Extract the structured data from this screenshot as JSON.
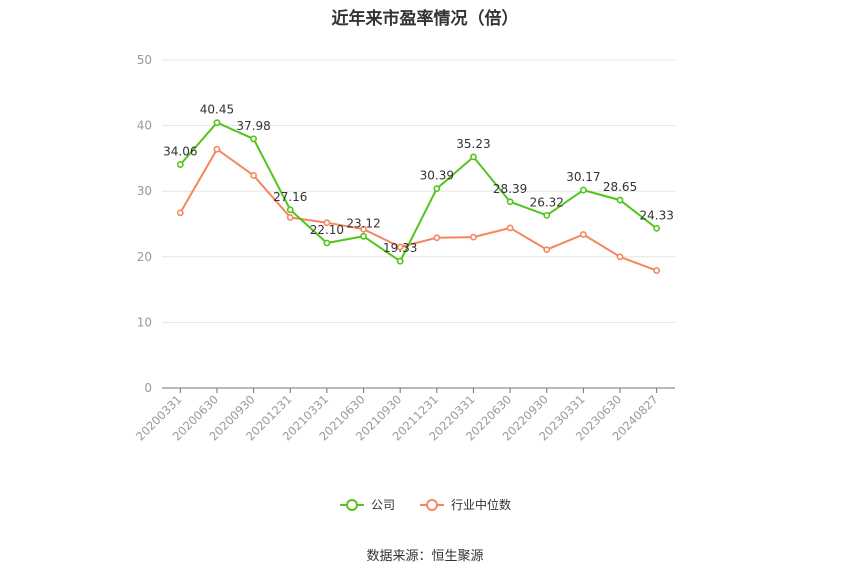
{
  "chart_data": {
    "type": "line",
    "title": "近年来市盈率情况（倍）",
    "categories": [
      "20200331",
      "20200630",
      "20200930",
      "20201231",
      "20210331",
      "20210630",
      "20210930",
      "20211231",
      "20220331",
      "20220630",
      "20220930",
      "20230331",
      "20230630",
      "20240827"
    ],
    "series": [
      {
        "name": "公司",
        "color": "#52c41a",
        "values": [
          34.06,
          40.45,
          37.98,
          27.16,
          22.1,
          23.12,
          19.33,
          30.39,
          35.23,
          28.39,
          26.32,
          30.17,
          28.65,
          24.33
        ],
        "labels": [
          "34.06",
          "40.45",
          "37.98",
          "27.16",
          "22.10",
          "23.12",
          "19.33",
          "30.39",
          "35.23",
          "28.39",
          "26.32",
          "30.17",
          "28.65",
          "24.33"
        ]
      },
      {
        "name": "行业中位数",
        "color": "#f4875b",
        "values": [
          26.7,
          36.4,
          32.4,
          26.0,
          25.2,
          24.2,
          21.5,
          22.9,
          23.0,
          24.4,
          21.1,
          23.4,
          20.0,
          17.9
        ]
      }
    ],
    "ylim": [
      0,
      50
    ],
    "yticks": [
      0,
      10,
      20,
      30,
      40,
      50
    ],
    "grid": true,
    "legend": "bottom-center"
  },
  "source": "数据来源：恒生聚源"
}
